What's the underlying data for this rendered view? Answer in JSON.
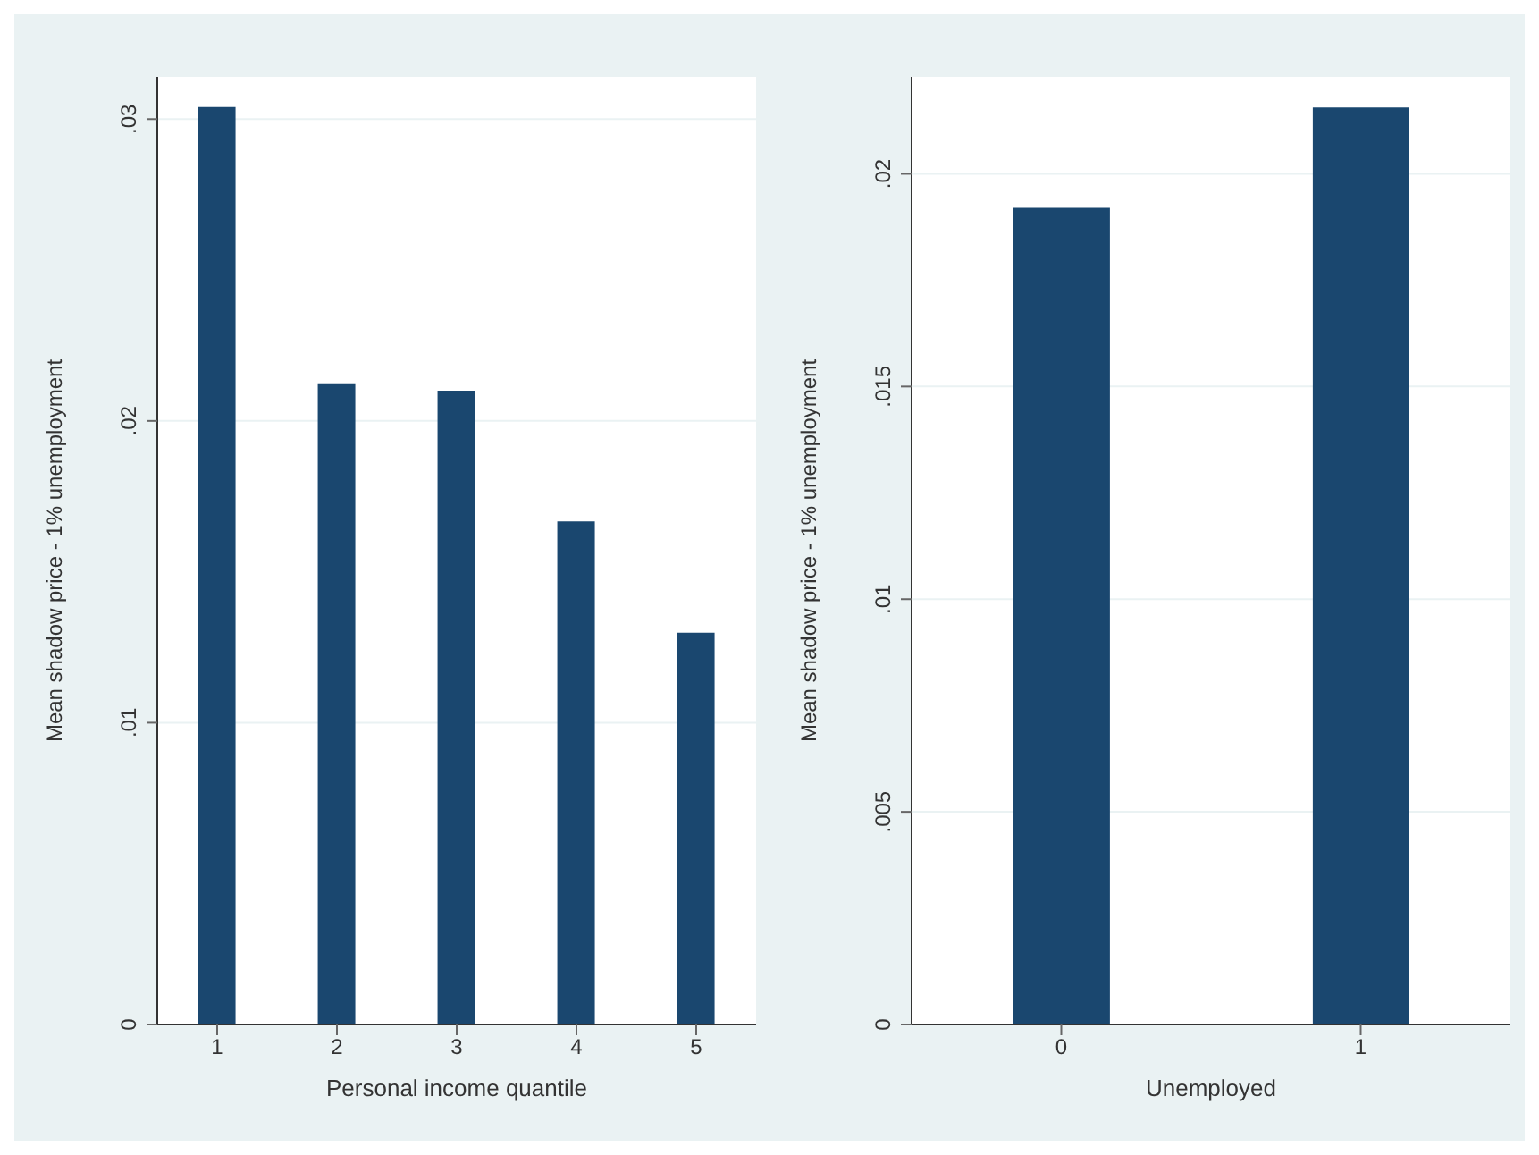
{
  "chart_data": [
    {
      "type": "bar",
      "categories": [
        "1",
        "2",
        "3",
        "4",
        "5"
      ],
      "values": [
        0.0304,
        0.02125,
        0.021,
        0.01667,
        0.01298
      ],
      "color": "#1a476f",
      "xlabel": "Personal income quantile",
      "ylabel": "Mean shadow price - 1% unemployment",
      "ylim": [
        0,
        0.0314
      ],
      "yticks": [
        {
          "value": 0,
          "label": "0"
        },
        {
          "value": 0.01,
          "label": ".01"
        },
        {
          "value": 0.02,
          "label": ".02"
        },
        {
          "value": 0.03,
          "label": ".03"
        }
      ],
      "grid": "y",
      "legend": false
    },
    {
      "type": "bar",
      "categories": [
        "0",
        "1"
      ],
      "values": [
        0.0192,
        0.02156
      ],
      "color": "#1a476f",
      "xlabel": "Unemployed",
      "ylabel": "Mean shadow price - 1% unemployment",
      "ylim": [
        0,
        0.02228
      ],
      "yticks": [
        {
          "value": 0,
          "label": "0"
        },
        {
          "value": 0.005,
          "label": ".005"
        },
        {
          "value": 0.01,
          "label": ".01"
        },
        {
          "value": 0.015,
          "label": ".015"
        },
        {
          "value": 0.02,
          "label": ".02"
        }
      ],
      "grid": "y",
      "legend": false
    }
  ]
}
